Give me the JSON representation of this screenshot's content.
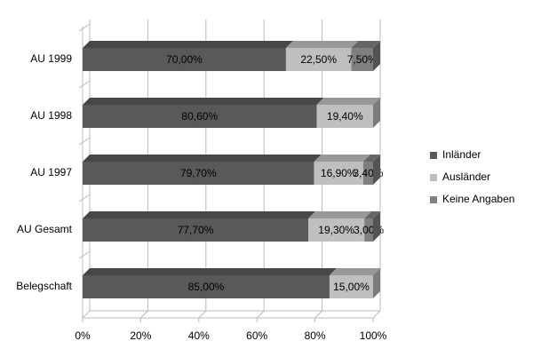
{
  "chart_data": {
    "type": "stacked_bar_3d",
    "orientation": "horizontal",
    "categories": [
      "AU 1999",
      "AU 1998",
      "AU 1997",
      "AU Gesamt",
      "Belegschaft"
    ],
    "series": [
      {
        "name": "Inländer",
        "color": "#595959",
        "values": [
          70,
          80.6,
          79.7,
          77.7,
          85
        ],
        "value_labels": [
          "70,00%",
          "80,60%",
          "79,70%",
          "77,70%",
          "85,00%"
        ]
      },
      {
        "name": "Ausländer",
        "color": "#bfbfbf",
        "values": [
          22.5,
          19.4,
          16.9,
          19.3,
          15
        ],
        "value_labels": [
          "22,50%",
          "19,40%",
          "16,90%",
          "19,30%",
          "15,00%"
        ]
      },
      {
        "name": "Keine Angaben",
        "color": "#7f7f7f",
        "values": [
          7.5,
          null,
          3.4,
          3,
          null
        ],
        "value_labels": [
          "7,50%",
          null,
          "3,40%",
          "3,00%",
          null
        ]
      }
    ],
    "xlim": [
      0,
      100
    ],
    "xticks": [
      {
        "value": 0,
        "label": "0%"
      },
      {
        "value": 20,
        "label": "20%"
      },
      {
        "value": 40,
        "label": "40%"
      },
      {
        "value": 60,
        "label": "60%"
      },
      {
        "value": 80,
        "label": "80%"
      },
      {
        "value": 100,
        "label": "100%"
      }
    ],
    "grid": true,
    "legend": "right"
  }
}
